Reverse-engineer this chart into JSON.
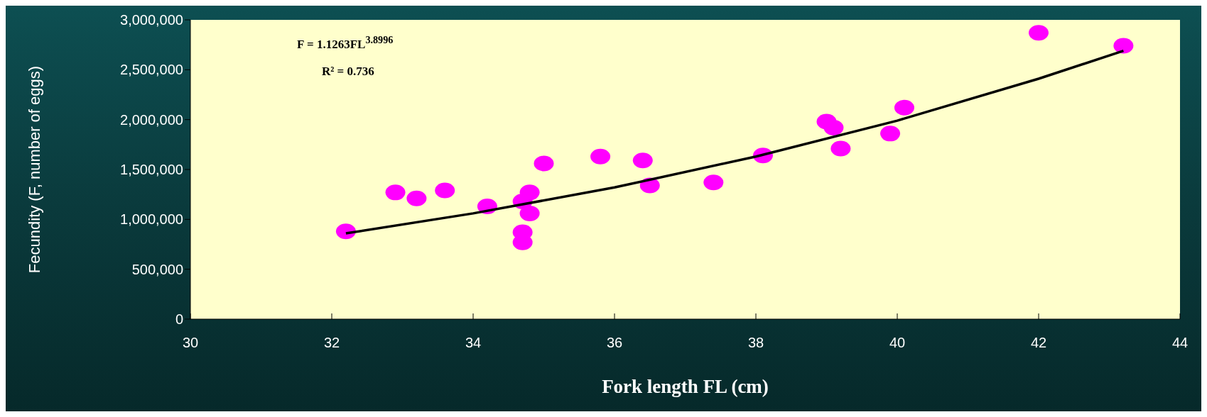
{
  "chart_data": {
    "type": "scatter",
    "xlabel": "Fork length FL (cm)",
    "ylabel": "Fecundity (F, number of eggs)",
    "annotations": [
      "F = 1.1263FL$^{3.8996}$",
      "R² = 0.736"
    ],
    "xlim": [
      30,
      44
    ],
    "xticks": [
      30,
      32,
      34,
      36,
      38,
      40,
      42,
      44
    ],
    "ylim": [
      0,
      3000000
    ],
    "yticks": [
      0,
      {
        "value": 500000,
        "label": "500,000"
      },
      {
        "value": 1000000,
        "label": "1,000,000"
      },
      {
        "value": 1500000,
        "label": "1,500,000"
      },
      {
        "value": 2000000,
        "label": "2,000,000"
      },
      {
        "value": 2500000,
        "label": "2,500,000"
      },
      {
        "value": 3000000,
        "label": "3,000,000"
      }
    ],
    "grid": false,
    "legend": false,
    "series": [
      {
        "marker": "circle",
        "color": "#ff00ff",
        "x": [
          32.2,
          32.9,
          33.2,
          33.6,
          34.2,
          34.7,
          34.8,
          34.7,
          34.7,
          34.8,
          35.0,
          35.8,
          36.4,
          36.5,
          37.4,
          38.1,
          39.0,
          39.1,
          39.2,
          39.9,
          40.1,
          42.0,
          43.2
        ],
        "values": [
          880000,
          1270000,
          1210000,
          1290000,
          1130000,
          1180000,
          1270000,
          870000,
          770000,
          1060000,
          1560000,
          1630000,
          1590000,
          1340000,
          1370000,
          1640000,
          1980000,
          1920000,
          1710000,
          1860000,
          2120000,
          2870000,
          2740000
        ]
      },
      {
        "type": "line",
        "marker": "none",
        "color": "#000000",
        "line_style": "solid",
        "x": [
          32.2,
          34,
          36,
          38,
          40,
          42,
          43.2
        ],
        "values": [
          860000,
          1060000,
          1320000,
          1630000,
          1990000,
          2410000,
          2690000
        ]
      }
    ]
  }
}
